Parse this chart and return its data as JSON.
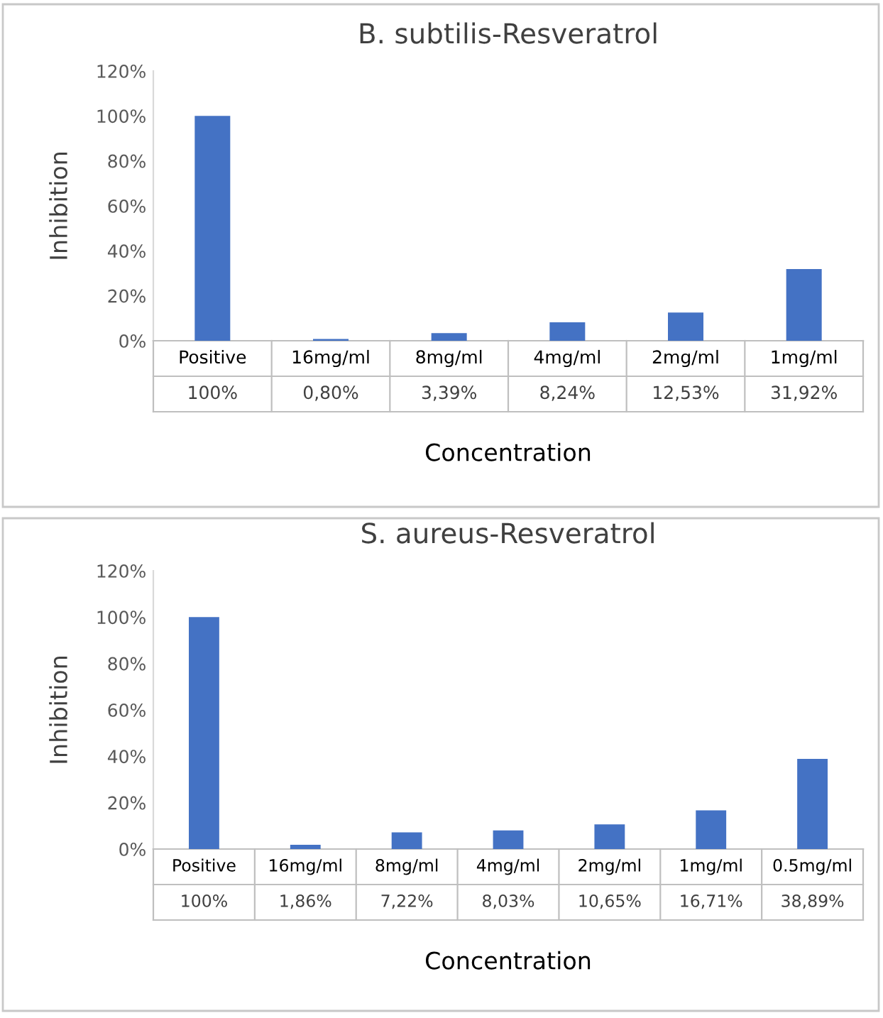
{
  "chart_data": [
    {
      "type": "bar",
      "title": "B. subtilis-Resveratrol",
      "xlabel": "Concentration",
      "ylabel": "Inhibition",
      "categories": [
        "Positive",
        "16mg/ml",
        "8mg/ml",
        "4mg/ml",
        "2mg/ml",
        "1mg/ml"
      ],
      "values": [
        100,
        0.8,
        3.39,
        8.24,
        12.53,
        31.92
      ],
      "value_labels": [
        "100%",
        "0,80%",
        "3,39%",
        "8,24%",
        "12,53%",
        "31,92%"
      ],
      "color": "#4472c4",
      "ylim": [
        0,
        120
      ],
      "yticks": [
        {
          "value": 0,
          "label": "0%"
        },
        {
          "value": 20,
          "label": "20%"
        },
        {
          "value": 40,
          "label": "40%"
        },
        {
          "value": 60,
          "label": "60%"
        },
        {
          "value": 80,
          "label": "80%"
        },
        {
          "value": 100,
          "label": "100%"
        },
        {
          "value": 120,
          "label": "120%"
        }
      ],
      "grid": false,
      "legend": false
    },
    {
      "type": "bar",
      "title": "S. aureus-Resveratrol",
      "xlabel": "Concentration",
      "ylabel": "Inhibition",
      "categories": [
        "Positive",
        "16mg/ml",
        "8mg/ml",
        "4mg/ml",
        "2mg/ml",
        "1mg/ml",
        "0.5mg/ml"
      ],
      "values": [
        100,
        1.86,
        7.22,
        8.03,
        10.65,
        16.71,
        38.89
      ],
      "value_labels": [
        "100%",
        "1,86%",
        "7,22%",
        "8,03%",
        "10,65%",
        "16,71%",
        "38,89%"
      ],
      "color": "#4472c4",
      "ylim": [
        0,
        120
      ],
      "yticks": [
        {
          "value": 0,
          "label": "0%"
        },
        {
          "value": 20,
          "label": "20%"
        },
        {
          "value": 40,
          "label": "40%"
        },
        {
          "value": 60,
          "label": "60%"
        },
        {
          "value": 80,
          "label": "80%"
        },
        {
          "value": 100,
          "label": "100%"
        },
        {
          "value": 120,
          "label": "120%"
        }
      ],
      "grid": false,
      "legend": false
    }
  ]
}
